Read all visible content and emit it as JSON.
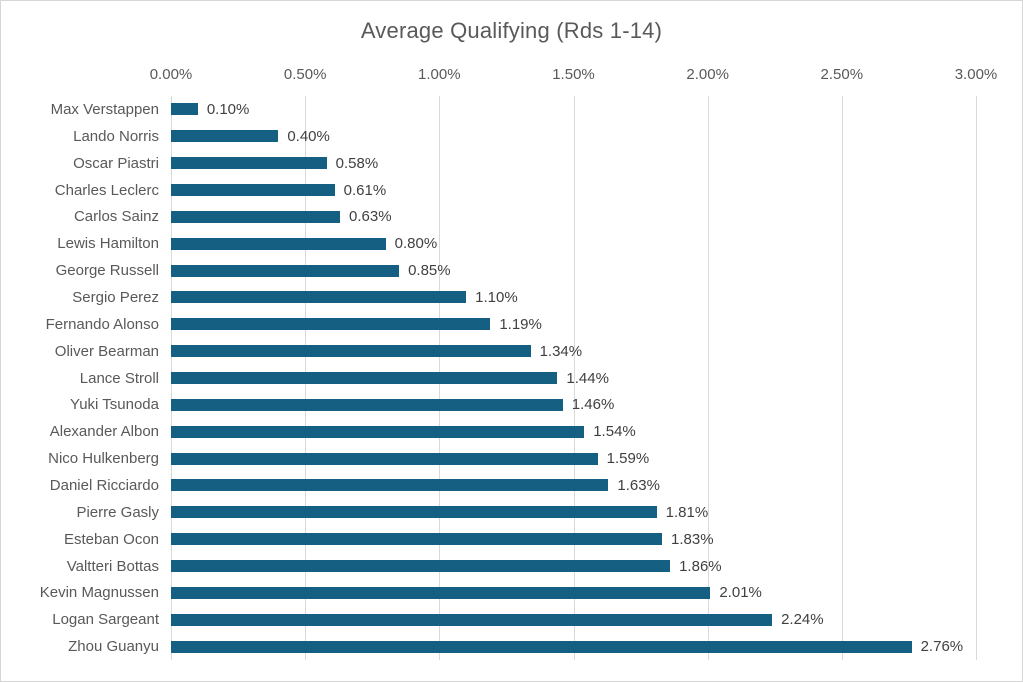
{
  "chart_data": {
    "type": "bar",
    "orientation": "horizontal",
    "title": "Average Qualifying (Rds 1-14)",
    "categories": [
      "Max Verstappen",
      "Lando Norris",
      "Oscar Piastri",
      "Charles Leclerc",
      "Carlos Sainz",
      "Lewis Hamilton",
      "George Russell",
      "Sergio Perez",
      "Fernando Alonso",
      "Oliver Bearman",
      "Lance Stroll",
      "Yuki Tsunoda",
      "Alexander Albon",
      "Nico Hulkenberg",
      "Daniel Ricciardo",
      "Pierre Gasly",
      "Esteban Ocon",
      "Valtteri Bottas",
      "Kevin Magnussen",
      "Logan Sargeant",
      "Zhou Guanyu"
    ],
    "values": [
      0.1,
      0.4,
      0.58,
      0.61,
      0.63,
      0.8,
      0.85,
      1.1,
      1.19,
      1.34,
      1.44,
      1.46,
      1.54,
      1.59,
      1.63,
      1.81,
      1.83,
      1.86,
      2.01,
      2.24,
      2.76
    ],
    "data_labels": [
      "0.10%",
      "0.40%",
      "0.58%",
      "0.61%",
      "0.63%",
      "0.80%",
      "0.85%",
      "1.10%",
      "1.19%",
      "1.34%",
      "1.44%",
      "1.46%",
      "1.54%",
      "1.59%",
      "1.63%",
      "1.81%",
      "1.83%",
      "1.86%",
      "2.01%",
      "2.24%",
      "2.76%"
    ],
    "x_ticks": [
      "0.00%",
      "0.50%",
      "1.00%",
      "1.50%",
      "2.00%",
      "2.50%",
      "3.00%"
    ],
    "xlim": [
      0,
      3.0
    ],
    "xlabel": "",
    "ylabel": "",
    "grid": "vertical",
    "legend": "none",
    "bar_color": "#156082",
    "gridline_color": "#d9d9d9",
    "title_color": "#595959",
    "axis_label_color": "#595959",
    "data_label_color": "#404040"
  }
}
